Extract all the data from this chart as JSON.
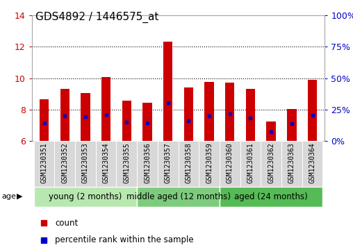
{
  "title": "GDS4892 / 1446575_at",
  "samples": [
    "GSM1230351",
    "GSM1230352",
    "GSM1230353",
    "GSM1230354",
    "GSM1230355",
    "GSM1230356",
    "GSM1230357",
    "GSM1230358",
    "GSM1230359",
    "GSM1230360",
    "GSM1230361",
    "GSM1230362",
    "GSM1230363",
    "GSM1230364"
  ],
  "counts": [
    8.65,
    9.3,
    9.05,
    10.05,
    8.55,
    8.45,
    12.3,
    9.4,
    9.75,
    9.7,
    9.3,
    7.25,
    8.05,
    9.9
  ],
  "percentile_values": [
    7.15,
    7.6,
    7.55,
    7.7,
    7.2,
    7.15,
    8.45,
    7.3,
    7.6,
    7.75,
    7.45,
    6.6,
    7.1,
    7.65
  ],
  "ymin": 6,
  "ymax": 14,
  "yticks_left": [
    6,
    8,
    10,
    12,
    14
  ],
  "yticks_right": [
    0,
    25,
    50,
    75,
    100
  ],
  "left_color": "#cc0000",
  "right_color": "#0000cc",
  "bar_color": "#cc0000",
  "marker_color": "#0000cc",
  "bar_bottom": 6,
  "groups": [
    {
      "label": "young (2 months)",
      "start": 0,
      "end": 5
    },
    {
      "label": "middle aged (12 months)",
      "start": 5,
      "end": 9
    },
    {
      "label": "aged (24 months)",
      "start": 9,
      "end": 14
    }
  ],
  "group_colors": [
    "#b8e8b0",
    "#7dcc7d",
    "#55bb55"
  ],
  "legend_count_label": "count",
  "legend_pct_label": "percentile rank within the sample",
  "age_label": "age",
  "grid_color": "#000000",
  "background_color": "#ffffff",
  "bar_width": 0.45,
  "sample_fontsize": 7.0,
  "title_fontsize": 11,
  "group_fontsize": 8.5
}
